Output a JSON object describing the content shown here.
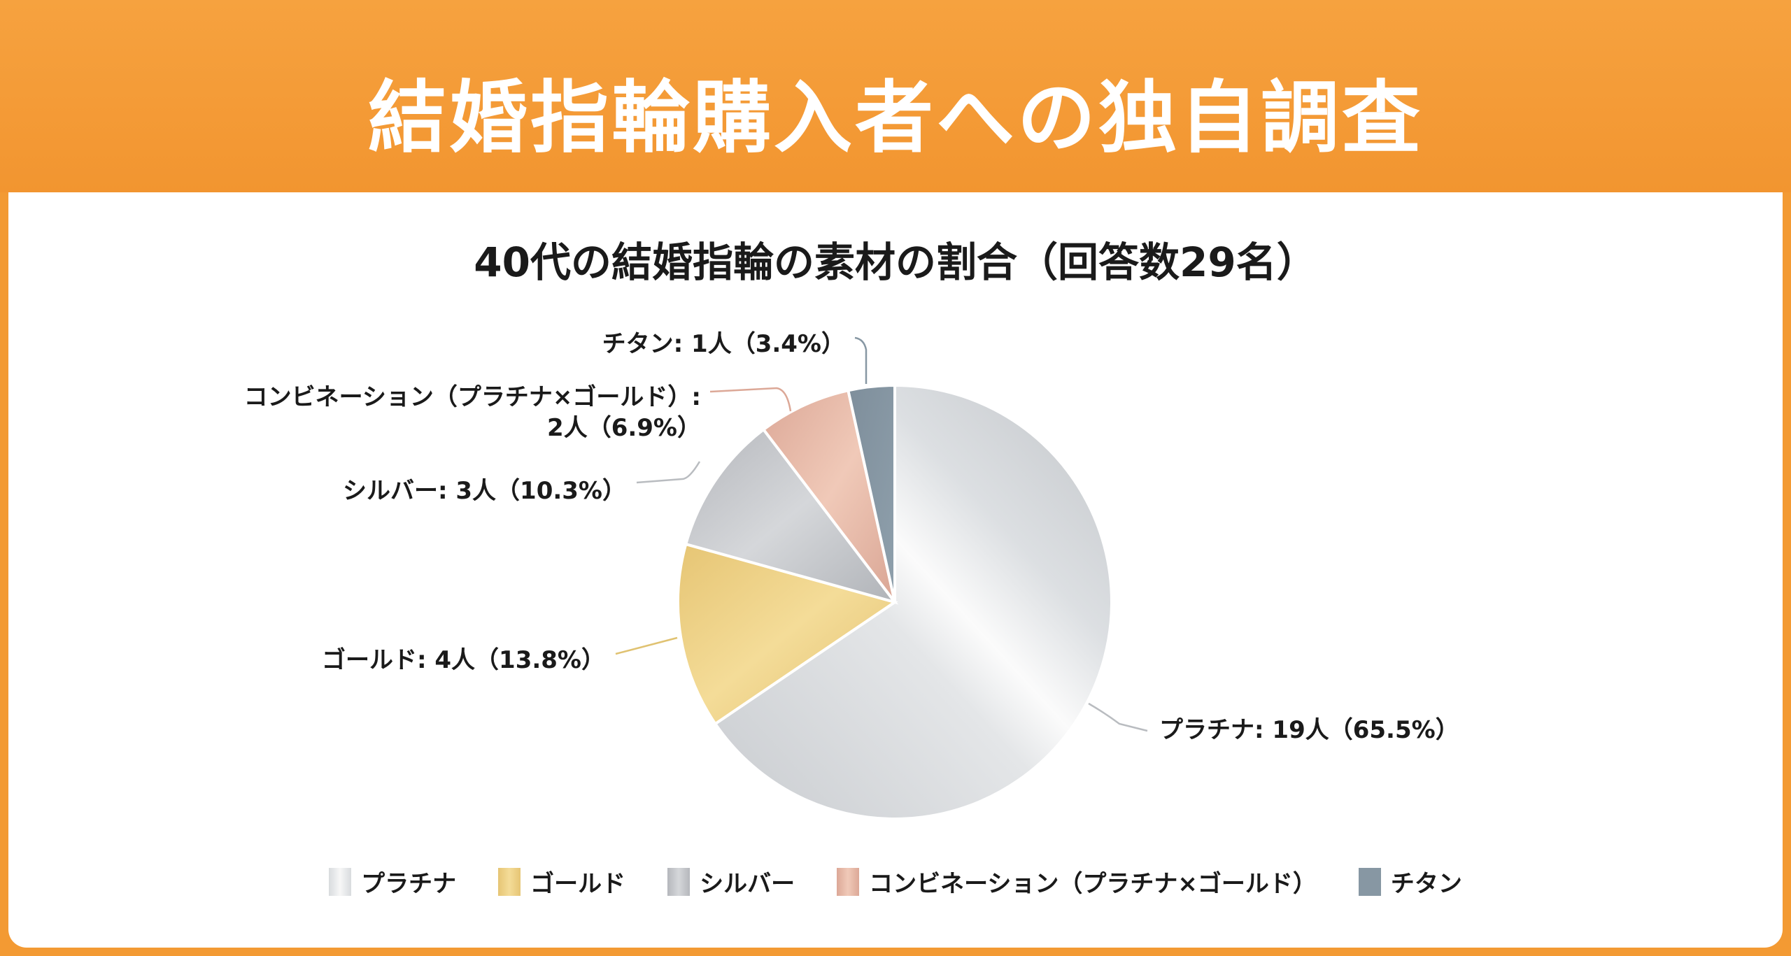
{
  "header": {
    "title": "結婚指輪購入者への独自調査"
  },
  "chart_data": {
    "type": "pie",
    "title": "40代の結婚指輪の素材の割合（回答数29名）",
    "total": 29,
    "slices": [
      {
        "name": "プラチナ",
        "count": 19,
        "percent": 65.5,
        "label": "プラチナ: 19人（65.5%）",
        "color": "#dfe2e5"
      },
      {
        "name": "ゴールド",
        "count": 4,
        "percent": 13.8,
        "label": "ゴールド: 4人（13.8%）",
        "color": "#ecd08a"
      },
      {
        "name": "シルバー",
        "count": 3,
        "percent": 10.3,
        "label": "シルバー: 3人（10.3%）",
        "color": "#c3c5c9"
      },
      {
        "name": "コンビネーション（プラチナ×ゴールド）",
        "count": 2,
        "percent": 6.9,
        "label": "コンビネーション（プラチナ×ゴールド）:",
        "label2": "2人（6.9%）",
        "color": "#e6b9a8"
      },
      {
        "name": "チタン",
        "count": 1,
        "percent": 3.4,
        "label": "チタン: 1人（3.4%）",
        "color": "#8797a3"
      }
    ],
    "legend_position": "bottom"
  }
}
